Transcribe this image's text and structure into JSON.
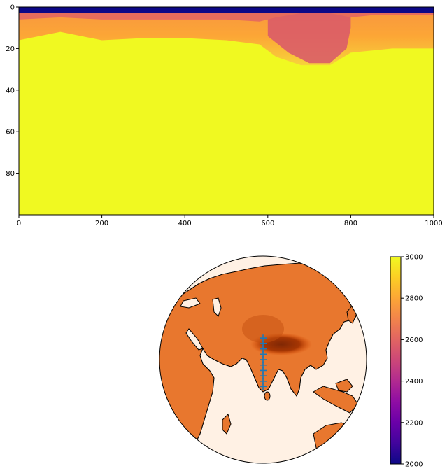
{
  "chart_data": [
    {
      "type": "heatmap",
      "title": "",
      "xlabel": "",
      "ylabel": "",
      "xlim": [
        0,
        1000
      ],
      "ylim": [
        100,
        0
      ],
      "x_ticks": [
        "0",
        "200",
        "400",
        "600",
        "800",
        "1000"
      ],
      "y_ticks": [
        "0",
        "20",
        "40",
        "60",
        "80"
      ],
      "colormap": "plasma",
      "value_range": [
        2000,
        3000
      ],
      "bands_by_x": {
        "x": [
          0,
          100,
          200,
          300,
          400,
          500,
          580,
          620,
          680,
          750,
          800,
          850,
          900,
          1000
        ],
        "low_layer_bottom": [
          3,
          3,
          3,
          3,
          3,
          3,
          3,
          3,
          3,
          3,
          3,
          3,
          3,
          3
        ],
        "mid_layer_bottom": [
          6,
          5,
          6,
          6,
          6,
          6,
          7,
          5,
          3,
          3,
          5,
          4,
          4,
          4
        ],
        "transition_bottom": [
          16,
          12,
          16,
          15,
          15,
          16,
          18,
          24,
          28,
          28,
          22,
          21,
          20,
          20
        ]
      },
      "layer_values": {
        "top": 2000,
        "second": 2600,
        "transition": 2800,
        "deep": 3000
      },
      "grid": false
    },
    {
      "type": "map",
      "title": "",
      "projection": "orthographic",
      "colormap": "Oranges",
      "markers": {
        "symbol": "+",
        "color": "#1f77b4",
        "lon": 78,
        "lat": [
          10,
          13,
          16,
          19,
          22,
          25,
          28,
          31,
          34,
          37
        ]
      }
    },
    {
      "type": "colorbar",
      "colormap": "plasma",
      "range": [
        2000,
        3000
      ],
      "ticks": [
        "2000",
        "2200",
        "2400",
        "2600",
        "2800",
        "3000"
      ]
    }
  ]
}
